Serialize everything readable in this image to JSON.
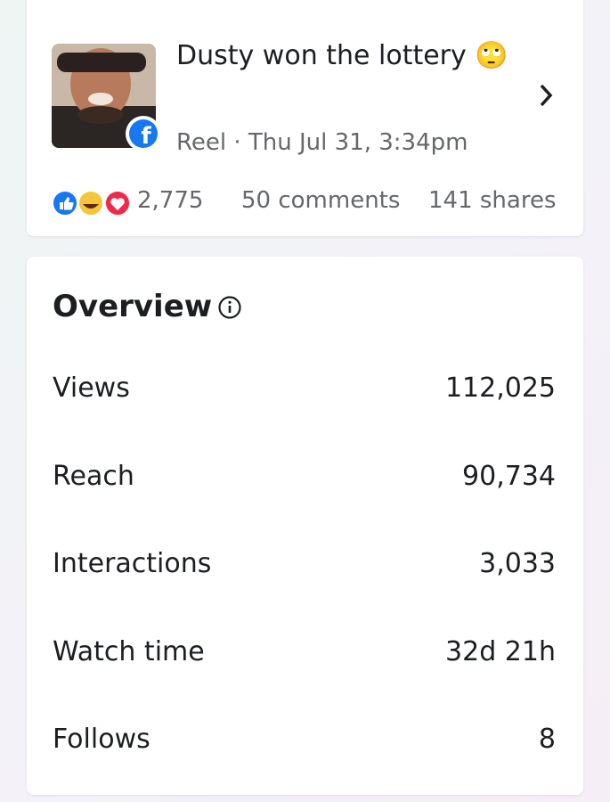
{
  "post": {
    "title": "Dusty won the lottery 🙄",
    "meta": "Reel · Thu Jul 31, 3:34pm",
    "reactions": "2,775",
    "comments": "50 comments",
    "shares": "141 shares"
  },
  "overview": {
    "title": "Overview",
    "rows": [
      [
        "Views",
        "112,025"
      ],
      [
        "Reach",
        "90,734"
      ],
      [
        "Interactions",
        "3,033"
      ],
      [
        "Watch time",
        "32d 21h"
      ],
      [
        "Follows",
        "8"
      ]
    ]
  }
}
